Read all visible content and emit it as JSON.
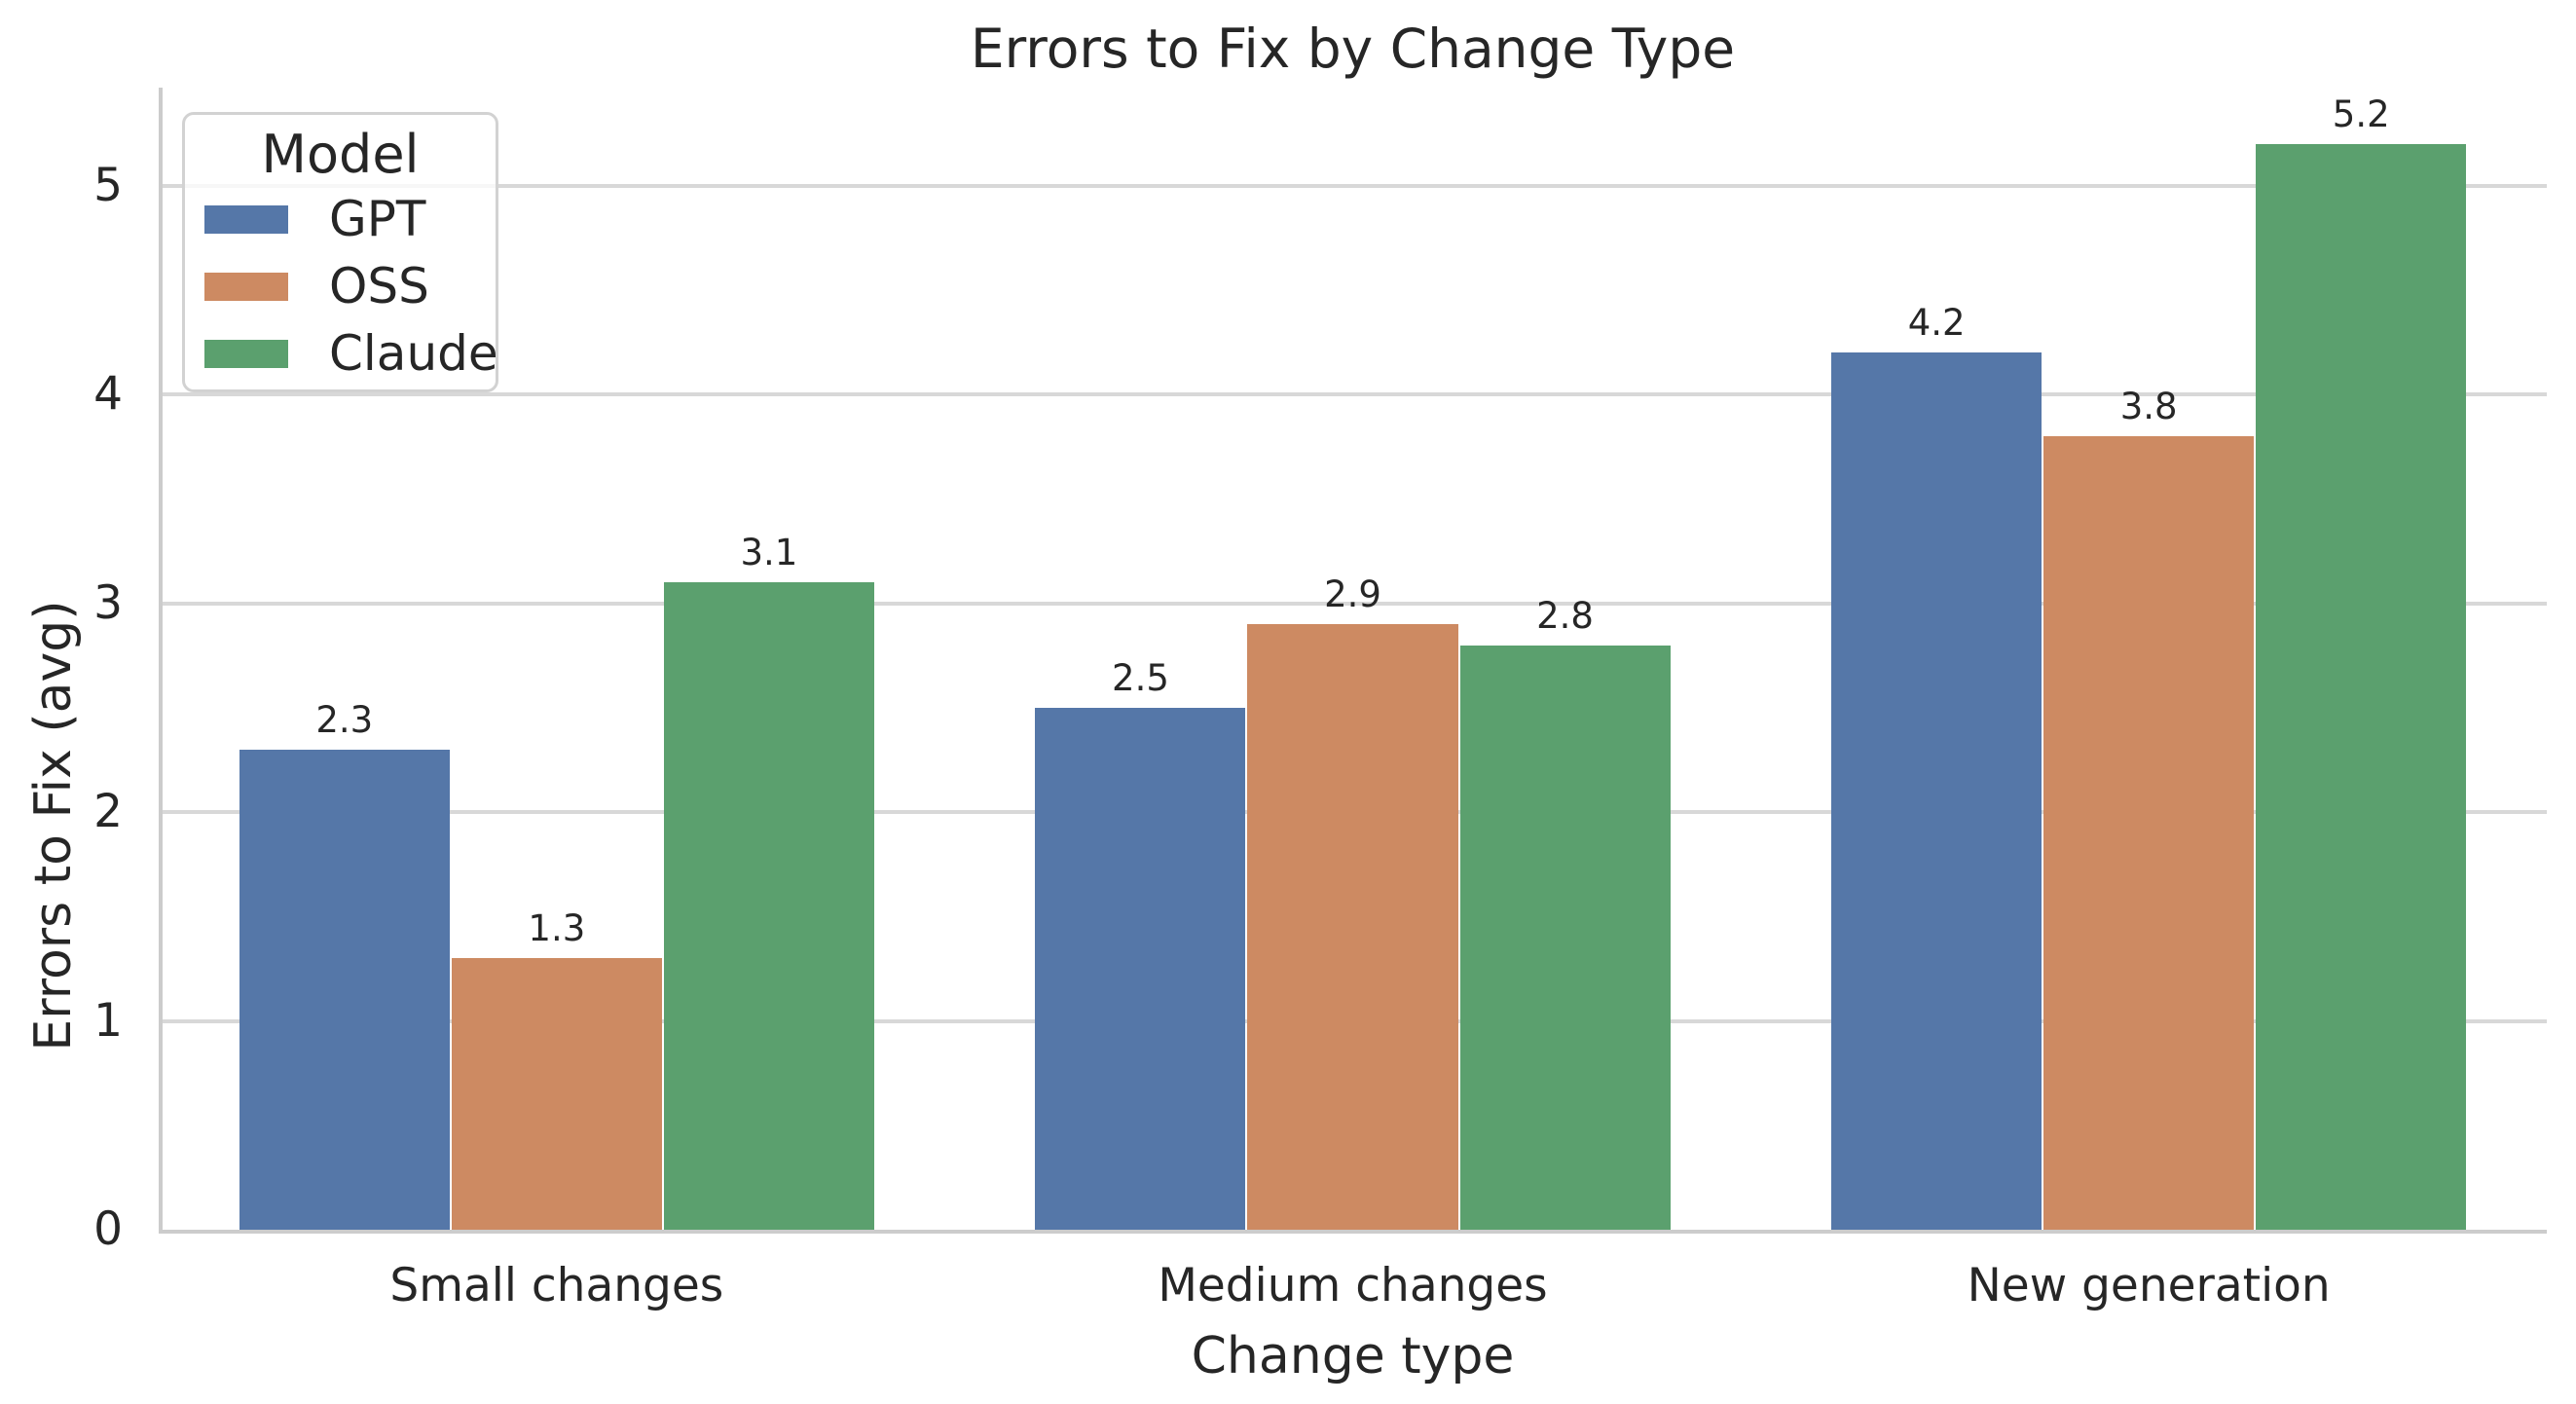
{
  "chart_data": {
    "type": "bar",
    "title": "Errors to Fix by Change Type",
    "xlabel": "Change type",
    "ylabel": "Errors to Fix (avg)",
    "categories": [
      "Small changes",
      "Medium changes",
      "New generation"
    ],
    "series": [
      {
        "name": "GPT",
        "color": "#5577A8",
        "values": [
          2.3,
          2.5,
          4.2
        ]
      },
      {
        "name": "OSS",
        "color": "#CD8A62",
        "values": [
          1.3,
          2.9,
          3.8
        ]
      },
      {
        "name": "Claude",
        "color": "#5BA06E",
        "values": [
          3.1,
          2.8,
          5.2
        ]
      }
    ],
    "bar_value_labels": [
      [
        "2.3",
        "2.5",
        "4.2"
      ],
      [
        "1.3",
        "2.9",
        "3.8"
      ],
      [
        "3.1",
        "2.8",
        "5.2"
      ]
    ],
    "yticks": [
      "0",
      "1",
      "2",
      "3",
      "4",
      "5"
    ],
    "ylim": [
      0,
      5.47
    ],
    "grid": "horizontal",
    "legend": {
      "title": "Model",
      "position": "upper-left"
    }
  },
  "style": {
    "text_color": "#262626",
    "grid_color": "#D8D8D8",
    "spine_color": "#CCCCCC",
    "background": "#FFFFFF"
  }
}
